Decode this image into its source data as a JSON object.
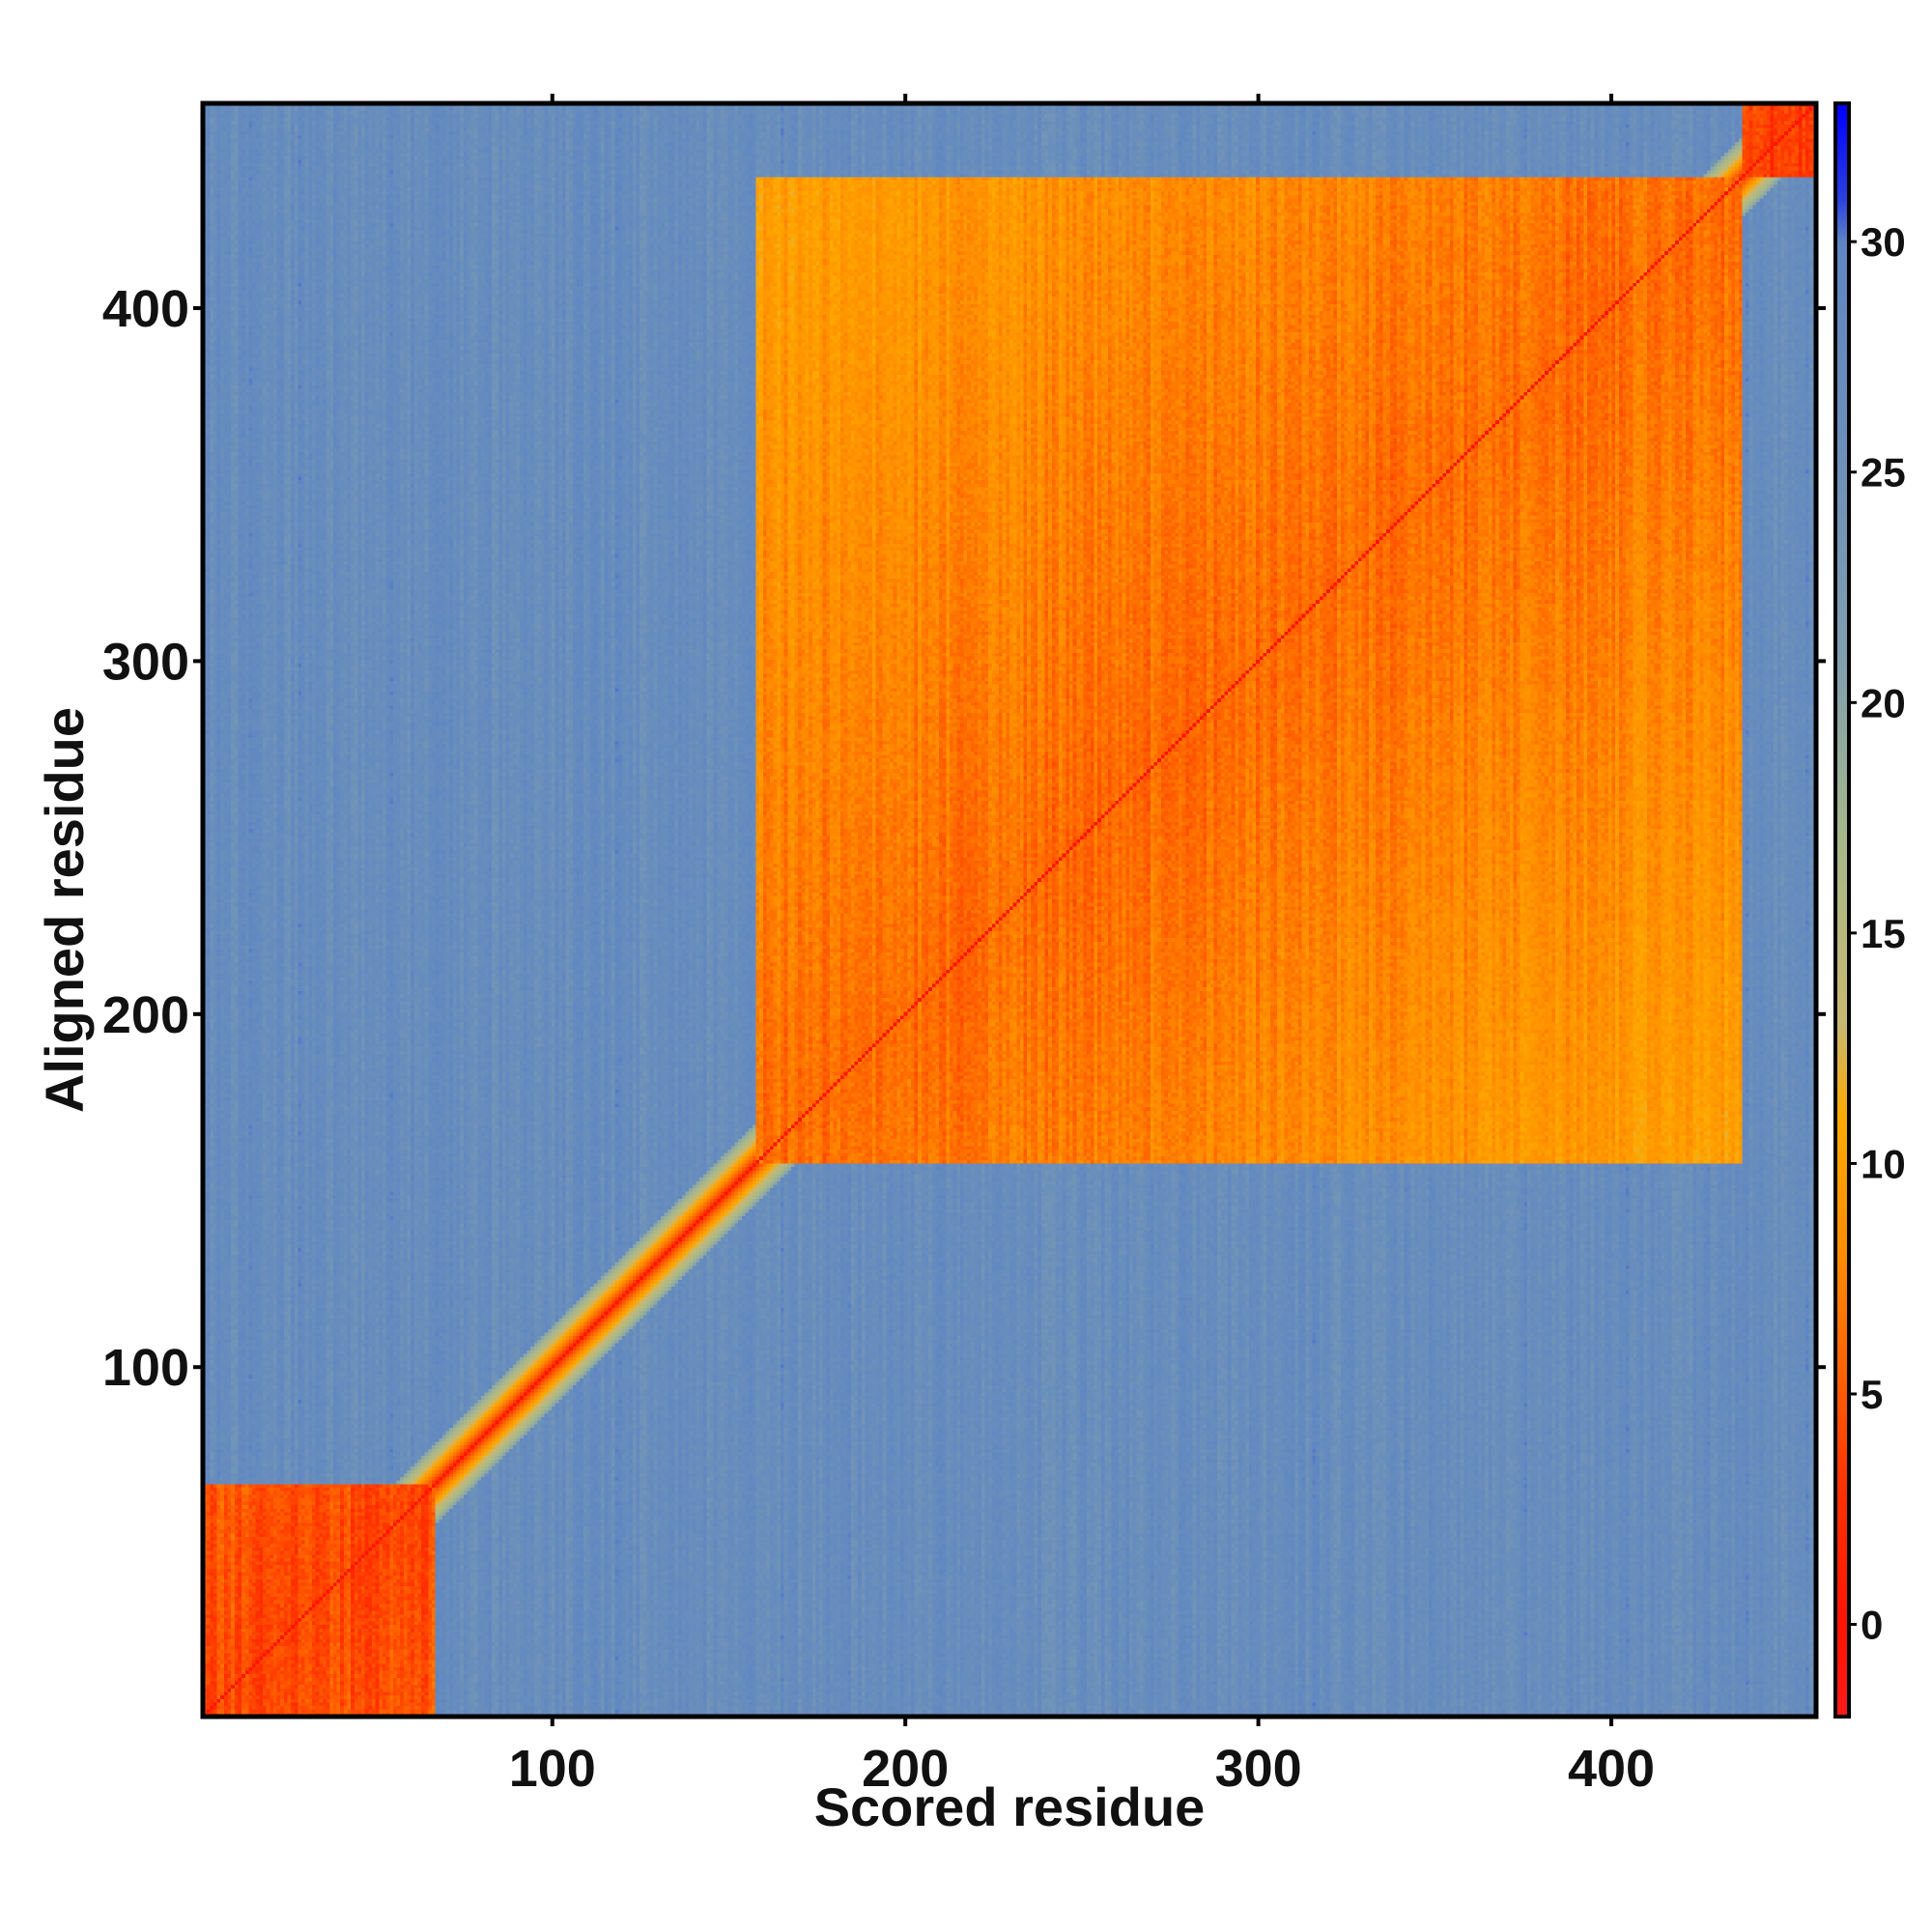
{
  "chart_data": {
    "type": "heatmap",
    "title": "",
    "xlabel": "Scored residue",
    "ylabel": "Aligned residue",
    "xlim": [
      1,
      458
    ],
    "ylim": [
      1,
      458
    ],
    "x_ticks": [
      100,
      200,
      300,
      400
    ],
    "y_ticks": [
      100,
      200,
      300,
      400
    ],
    "colorbar": {
      "min": -2,
      "max": 33,
      "ticks": [
        0,
        5,
        10,
        15,
        20,
        25,
        30
      ],
      "stops": [
        {
          "value": -2,
          "color": "#ff1a1a"
        },
        {
          "value": 0,
          "color": "#ff1400"
        },
        {
          "value": 3,
          "color": "#ff3300"
        },
        {
          "value": 5,
          "color": "#ff5a00"
        },
        {
          "value": 8,
          "color": "#ff8c00"
        },
        {
          "value": 11,
          "color": "#ffaa00"
        },
        {
          "value": 13,
          "color": "#c9b870"
        },
        {
          "value": 17,
          "color": "#a8b88a"
        },
        {
          "value": 21,
          "color": "#7f9fb0"
        },
        {
          "value": 26,
          "color": "#6b8fbb"
        },
        {
          "value": 30,
          "color": "#5f86c2"
        },
        {
          "value": 31,
          "color": "#2a3fe0"
        },
        {
          "value": 33,
          "color": "#0000ff"
        }
      ]
    },
    "domains": [
      {
        "start": 1,
        "end": 66,
        "value": 4
      },
      {
        "start": 158,
        "end": 437,
        "value": 6
      },
      {
        "start": 438,
        "end": 458,
        "value": 3
      }
    ],
    "background_value": 27,
    "diagonal_value": 0
  }
}
